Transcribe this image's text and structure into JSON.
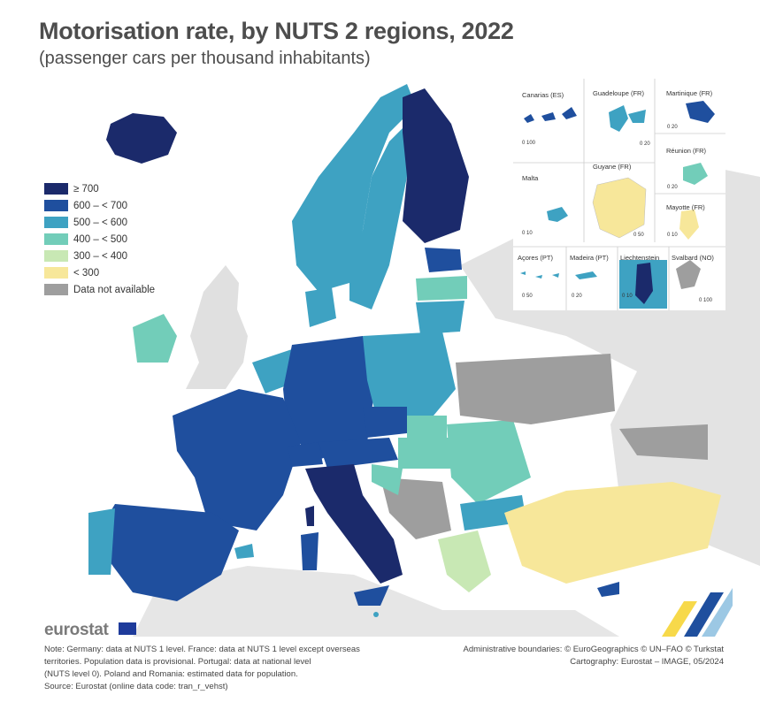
{
  "title": "Motorisation rate, by NUTS 2 regions, 2022",
  "subtitle": "(passenger cars per thousand inhabitants)",
  "legend": [
    {
      "label": "≥ 700",
      "color": "#1b2a6b"
    },
    {
      "label": "600 – < 700",
      "color": "#1f4f9e"
    },
    {
      "label": "500 – < 600",
      "color": "#3ea2c2"
    },
    {
      "label": "400 – < 500",
      "color": "#72cdb9"
    },
    {
      "label": "300 – < 400",
      "color": "#c8e8b4"
    },
    {
      "label": "< 300",
      "color": "#f7e79a"
    },
    {
      "label": "Data not available",
      "color": "#9e9e9e"
    }
  ],
  "insets": {
    "canarias": "Canarias (ES)",
    "guadeloupe": "Guadeloupe (FR)",
    "martinique": "Martinique (FR)",
    "reunion": "Réunion (FR)",
    "malta": "Malta",
    "guyane": "Guyane (FR)",
    "mayotte": "Mayotte (FR)",
    "acores": "Açores (PT)",
    "madeira": "Madeira (PT)",
    "liechtenstein": "Liechtenstein",
    "svalbard": "Svalbard (NO)",
    "scales": {
      "canarias": "0   100",
      "guadeloupe": "0   20",
      "martinique": "0   20",
      "reunion": "0   20",
      "malta": "0   10",
      "guyane": "0   50",
      "mayotte": "0   10",
      "acores": "0   50",
      "madeira": "0   20",
      "liechtenstein": "0   10",
      "svalbard": "0   100"
    }
  },
  "logo": "eurostat",
  "note": {
    "line1": "Note: Germany: data at NUTS 1 level. France: data at NUTS 1 level except overseas",
    "line2": "territories. Population data is provisional. Portugal: data at national level",
    "line3": "(NUTS level 0). Poland and Romania: estimated data for population.",
    "line4": "Source: Eurostat (online data code: tran_r_vehst)"
  },
  "credits": {
    "line1": "Administrative boundaries: © EuroGeographics © UN–FAO © Turkstat",
    "line2": "Cartography: Eurostat – IMAGE, 05/2024"
  }
}
